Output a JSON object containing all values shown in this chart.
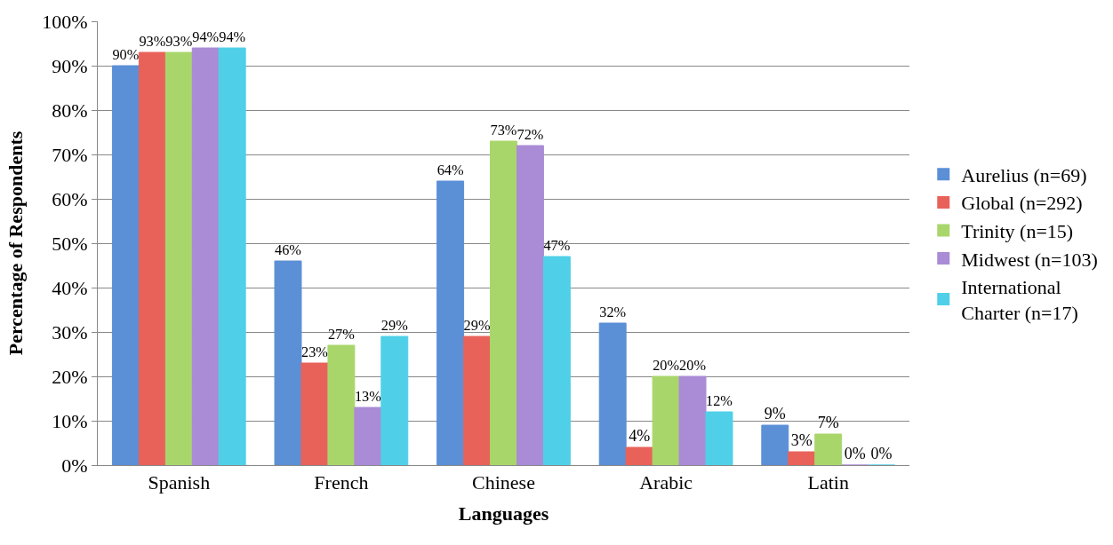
{
  "chart_data": {
    "type": "bar",
    "xlabel": "Languages",
    "ylabel": "Percentage of Respondents",
    "categories": [
      "Spanish",
      "French",
      "Chinese",
      "Arabic",
      "Latin"
    ],
    "series": [
      {
        "name": "Aurelius (n=69)",
        "color": "#5b8fd6",
        "values": [
          90,
          46,
          64,
          32,
          9
        ],
        "value_labels": [
          "90%",
          "46%",
          "64%",
          "32%",
          "9%"
        ]
      },
      {
        "name": "Global (n=292)",
        "color": "#e8625a",
        "values": [
          93,
          23,
          29,
          4,
          3
        ],
        "value_labels": [
          "93%",
          "23%",
          "29%",
          "4%",
          "3%"
        ]
      },
      {
        "name": "Trinity (n=15)",
        "color": "#a9d66b",
        "values": [
          93,
          27,
          73,
          20,
          7
        ],
        "value_labels": [
          "93%",
          "27%",
          "73%",
          "20%",
          "7%"
        ]
      },
      {
        "name": "Midwest (n=103)",
        "color": "#a98bd6",
        "values": [
          94,
          13,
          72,
          20,
          0
        ],
        "value_labels": [
          "94%",
          "13%",
          "72%",
          "20%",
          "0%"
        ]
      },
      {
        "name": "International Charter (n=17)",
        "color": "#4fd0e8",
        "values": [
          94,
          29,
          47,
          12,
          0
        ],
        "value_labels": [
          "94%",
          "29%",
          "47%",
          "12%",
          "0%"
        ]
      }
    ],
    "ylim": [
      0,
      100
    ],
    "yticks": [
      {
        "value": 0,
        "label": "0%"
      },
      {
        "value": 10,
        "label": "10%"
      },
      {
        "value": 20,
        "label": "20%"
      },
      {
        "value": 30,
        "label": "30%"
      },
      {
        "value": 40,
        "label": "40%"
      },
      {
        "value": 50,
        "label": "50%"
      },
      {
        "value": 60,
        "label": "60%"
      },
      {
        "value": 70,
        "label": "70%"
      },
      {
        "value": 80,
        "label": "80%"
      },
      {
        "value": 90,
        "label": "90%"
      },
      {
        "value": 100,
        "label": "100%"
      }
    ],
    "grid": "y",
    "legend": "right"
  }
}
